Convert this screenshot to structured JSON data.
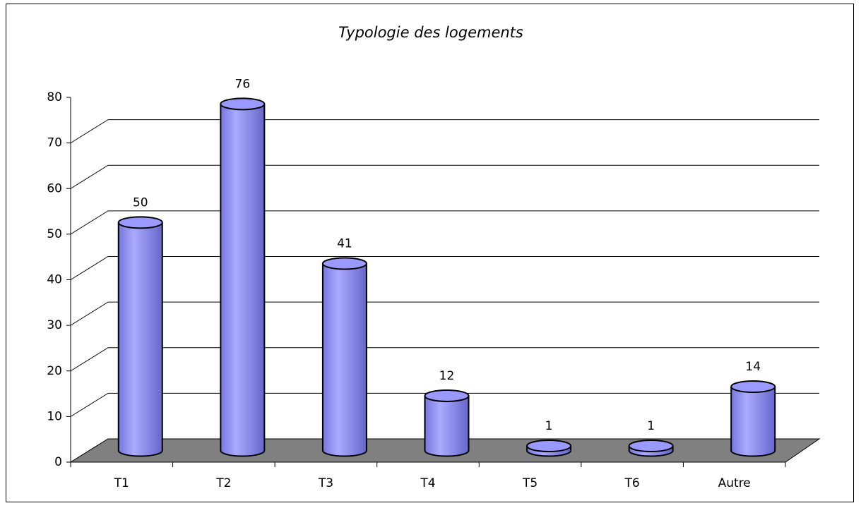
{
  "chart_data": {
    "type": "bar",
    "title": "Typologie des logements",
    "categories": [
      "T1",
      "T2",
      "T3",
      "T4",
      "T5",
      "T6",
      "Autre"
    ],
    "values": [
      50,
      76,
      41,
      12,
      1,
      1,
      14
    ],
    "color": "#9999ff",
    "ylim": [
      0,
      80
    ],
    "yticks": [
      0,
      10,
      20,
      30,
      40,
      50,
      60,
      70,
      80
    ],
    "grid": true
  }
}
